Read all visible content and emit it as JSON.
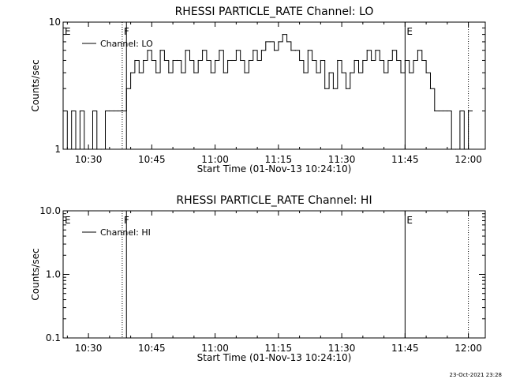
{
  "footer_timestamp": "23-Oct-2021 23:28",
  "chart_data": [
    {
      "type": "line",
      "title": "RHESSI PARTICLE_RATE Channel: LO",
      "xlabel": "Start Time (01-Nov-13 10:24:10)",
      "ylabel": "Counts/sec",
      "y_scale": "log",
      "ylim": [
        1,
        10
      ],
      "y_ticks": [
        {
          "value": 1,
          "label": "1"
        },
        {
          "value": 10,
          "label": "10"
        }
      ],
      "xlim": [
        "10:24",
        "12:04"
      ],
      "x_ticks": [
        "10:30",
        "10:45",
        "11:00",
        "11:15",
        "11:30",
        "11:45",
        "12:00"
      ],
      "legend": {
        "entries": [
          "Channel: LO"
        ],
        "position": "top-left"
      },
      "markers": [
        {
          "label": "E",
          "time": "10:24",
          "style": "dotted"
        },
        {
          "label": "F",
          "time": "10:38",
          "style": "dotted"
        },
        {
          "label": "",
          "time": "10:39",
          "style": "solid"
        },
        {
          "label": "E",
          "time": "11:45",
          "style": "solid"
        },
        {
          "label": "",
          "time": "12:00",
          "style": "dotted"
        }
      ],
      "series": [
        {
          "name": "Channel: LO",
          "x": [
            "10:24",
            "10:25",
            "10:26",
            "10:27",
            "10:28",
            "10:29",
            "10:30",
            "10:31",
            "10:32",
            "10:33",
            "10:34",
            "10:35",
            "10:36",
            "10:37",
            "10:38",
            "10:39",
            "10:40",
            "10:41",
            "10:42",
            "10:43",
            "10:44",
            "10:45",
            "10:46",
            "10:47",
            "10:48",
            "10:49",
            "10:50",
            "10:51",
            "10:52",
            "10:53",
            "10:54",
            "10:55",
            "10:56",
            "10:57",
            "10:58",
            "10:59",
            "11:00",
            "11:01",
            "11:02",
            "11:03",
            "11:04",
            "11:05",
            "11:06",
            "11:07",
            "11:08",
            "11:09",
            "11:10",
            "11:11",
            "11:12",
            "11:13",
            "11:14",
            "11:15",
            "11:16",
            "11:17",
            "11:18",
            "11:19",
            "11:20",
            "11:21",
            "11:22",
            "11:23",
            "11:24",
            "11:25",
            "11:26",
            "11:27",
            "11:28",
            "11:29",
            "11:30",
            "11:31",
            "11:32",
            "11:33",
            "11:34",
            "11:35",
            "11:36",
            "11:37",
            "11:38",
            "11:39",
            "11:40",
            "11:41",
            "11:42",
            "11:43",
            "11:44",
            "11:45",
            "11:46",
            "11:47",
            "11:48",
            "11:49",
            "11:50",
            "11:51",
            "11:52",
            "11:53",
            "11:54",
            "11:55",
            "11:56",
            "11:57",
            "11:58",
            "11:59",
            "12:00"
          ],
          "values": [
            2,
            1,
            2,
            1,
            2,
            1,
            1,
            2,
            1,
            1,
            2,
            2,
            2,
            2,
            2,
            3,
            4,
            5,
            4,
            5,
            6,
            5,
            4,
            6,
            5,
            4,
            5,
            5,
            4,
            6,
            5,
            4,
            5,
            6,
            5,
            4,
            5,
            6,
            4,
            5,
            5,
            6,
            5,
            4,
            5,
            6,
            5,
            6,
            7,
            7,
            6,
            7,
            8,
            7,
            6,
            6,
            5,
            4,
            6,
            5,
            4,
            5,
            3,
            4,
            3,
            5,
            4,
            3,
            4,
            5,
            4,
            5,
            6,
            5,
            6,
            5,
            4,
            5,
            6,
            5,
            4,
            5,
            4,
            5,
            6,
            5,
            4,
            3,
            2,
            2,
            2,
            2,
            1,
            1,
            2,
            1,
            2
          ]
        }
      ]
    },
    {
      "type": "line",
      "title": "RHESSI PARTICLE_RATE Channel: HI",
      "xlabel": "Start Time (01-Nov-13 10:24:10)",
      "ylabel": "Counts/sec",
      "y_scale": "log",
      "ylim": [
        0.1,
        10
      ],
      "y_ticks": [
        {
          "value": 0.1,
          "label": "0.1"
        },
        {
          "value": 1,
          "label": "1.0"
        },
        {
          "value": 10,
          "label": "10.0"
        }
      ],
      "xlim": [
        "10:24",
        "12:04"
      ],
      "x_ticks": [
        "10:30",
        "10:45",
        "11:00",
        "11:15",
        "11:30",
        "11:45",
        "12:00"
      ],
      "legend": {
        "entries": [
          "Channel: HI"
        ],
        "position": "top-left"
      },
      "markers": [
        {
          "label": "E",
          "time": "10:24",
          "style": "dotted"
        },
        {
          "label": "F",
          "time": "10:38",
          "style": "dotted"
        },
        {
          "label": "",
          "time": "10:39",
          "style": "solid"
        },
        {
          "label": "E",
          "time": "11:45",
          "style": "solid"
        },
        {
          "label": "",
          "time": "12:00",
          "style": "dotted"
        }
      ],
      "series": [
        {
          "name": "Channel: HI",
          "x": [],
          "values": []
        }
      ]
    }
  ]
}
